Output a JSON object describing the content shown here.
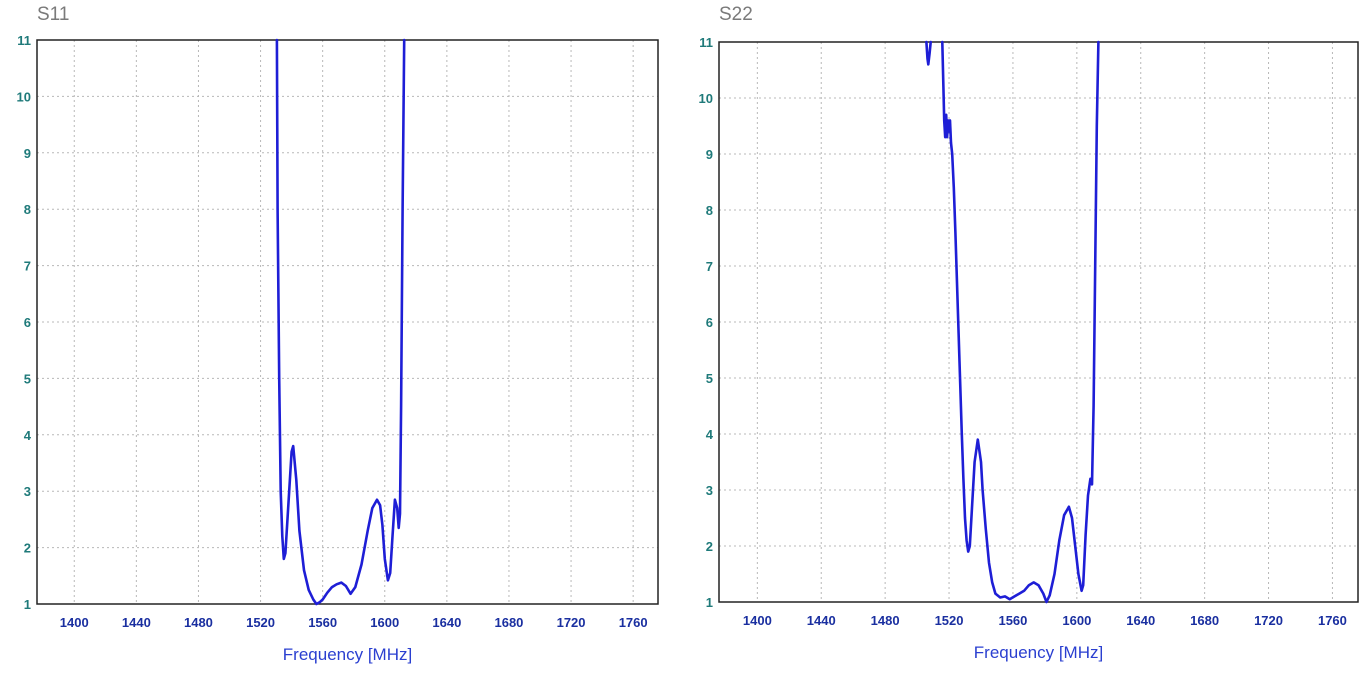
{
  "chart_data": [
    {
      "type": "line",
      "title": "S11",
      "xlabel": "Frequency [MHz]",
      "ylabel": "",
      "xlim": [
        1376,
        1776
      ],
      "ylim": [
        1,
        11
      ],
      "xticks": [
        1400,
        1440,
        1480,
        1520,
        1560,
        1600,
        1640,
        1680,
        1720,
        1760
      ],
      "yticks": [
        1,
        2,
        3,
        4,
        5,
        6,
        7,
        8,
        9,
        10,
        11
      ],
      "grid": true,
      "line_color": "#1e1ed6",
      "series": [
        {
          "x": [
            1530.5,
            1531.0,
            1532.0,
            1533.0,
            1534.0,
            1535.0,
            1536.0,
            1538.0,
            1540.0,
            1541.0,
            1543.0,
            1545.0,
            1548.0,
            1551.0,
            1554.0,
            1556.0,
            1558.0,
            1560.0,
            1563.0,
            1566.0,
            1569.0,
            1572.0,
            1575.0,
            1578.0,
            1581.0,
            1585.0,
            1589.0,
            1592.0,
            1595.0,
            1597.0,
            1598.5,
            1600.0,
            1602.0,
            1603.5,
            1605.0,
            1606.5,
            1608.0,
            1609.0,
            1609.8,
            1610.5,
            1611.5,
            1612.5
          ],
          "y": [
            11.0,
            8.0,
            5.0,
            3.0,
            2.2,
            1.8,
            1.9,
            2.8,
            3.7,
            3.8,
            3.2,
            2.3,
            1.6,
            1.25,
            1.08,
            1.0,
            1.03,
            1.08,
            1.2,
            1.3,
            1.35,
            1.38,
            1.32,
            1.18,
            1.3,
            1.7,
            2.3,
            2.7,
            2.85,
            2.75,
            2.4,
            1.8,
            1.42,
            1.55,
            2.2,
            2.85,
            2.7,
            2.35,
            2.6,
            4.5,
            8.0,
            11.0
          ]
        }
      ]
    },
    {
      "type": "line",
      "title": "S22",
      "xlabel": "Frequency [MHz]",
      "ylabel": "",
      "xlim": [
        1376,
        1776
      ],
      "ylim": [
        1,
        11
      ],
      "xticks": [
        1400,
        1440,
        1480,
        1520,
        1560,
        1600,
        1640,
        1680,
        1720,
        1760
      ],
      "yticks": [
        1,
        2,
        3,
        4,
        5,
        6,
        7,
        8,
        9,
        10,
        11
      ],
      "grid": true,
      "line_color": "#1e1ed6",
      "series": [
        {
          "x": [
            1505.8,
            1506.5,
            1507.0,
            1507.8,
            1508.5
          ],
          "y": [
            11.0,
            10.7,
            10.6,
            10.8,
            11.0
          ]
        },
        {
          "x": [
            1515.8,
            1516.5,
            1517.0,
            1517.6,
            1518.2,
            1518.8,
            1519.4,
            1520.0,
            1520.6,
            1521.2,
            1522.0,
            1523.0,
            1524.0,
            1525.0,
            1526.0,
            1527.0,
            1528.0,
            1529.0,
            1530.0,
            1531.0,
            1532.0,
            1533.0,
            1534.0,
            1536.0,
            1538.0,
            1540.0,
            1541.0,
            1543.0,
            1545.0,
            1547.0,
            1549.0,
            1552.0,
            1555.0,
            1558.0,
            1561.0,
            1564.0,
            1567.0,
            1570.0,
            1573.0,
            1576.0,
            1579.0,
            1581.0,
            1583.0,
            1586.0,
            1589.0,
            1592.0,
            1595.0,
            1597.0,
            1599.0,
            1601.0,
            1603.0,
            1604.0,
            1605.5,
            1607.0,
            1608.5,
            1609.5,
            1610.5,
            1611.5,
            1612.5,
            1613.5
          ],
          "y": [
            11.0,
            10.2,
            9.6,
            9.3,
            9.7,
            9.3,
            9.6,
            9.4,
            9.6,
            9.2,
            9.0,
            8.4,
            7.6,
            6.7,
            5.8,
            4.9,
            4.0,
            3.2,
            2.5,
            2.1,
            1.9,
            2.0,
            2.5,
            3.5,
            3.9,
            3.5,
            3.0,
            2.3,
            1.7,
            1.35,
            1.15,
            1.08,
            1.1,
            1.05,
            1.1,
            1.15,
            1.2,
            1.3,
            1.35,
            1.3,
            1.15,
            1.0,
            1.12,
            1.5,
            2.1,
            2.55,
            2.7,
            2.5,
            2.0,
            1.5,
            1.2,
            1.3,
            2.2,
            2.9,
            3.2,
            3.1,
            4.5,
            7.0,
            9.5,
            11.0
          ]
        }
      ]
    }
  ]
}
